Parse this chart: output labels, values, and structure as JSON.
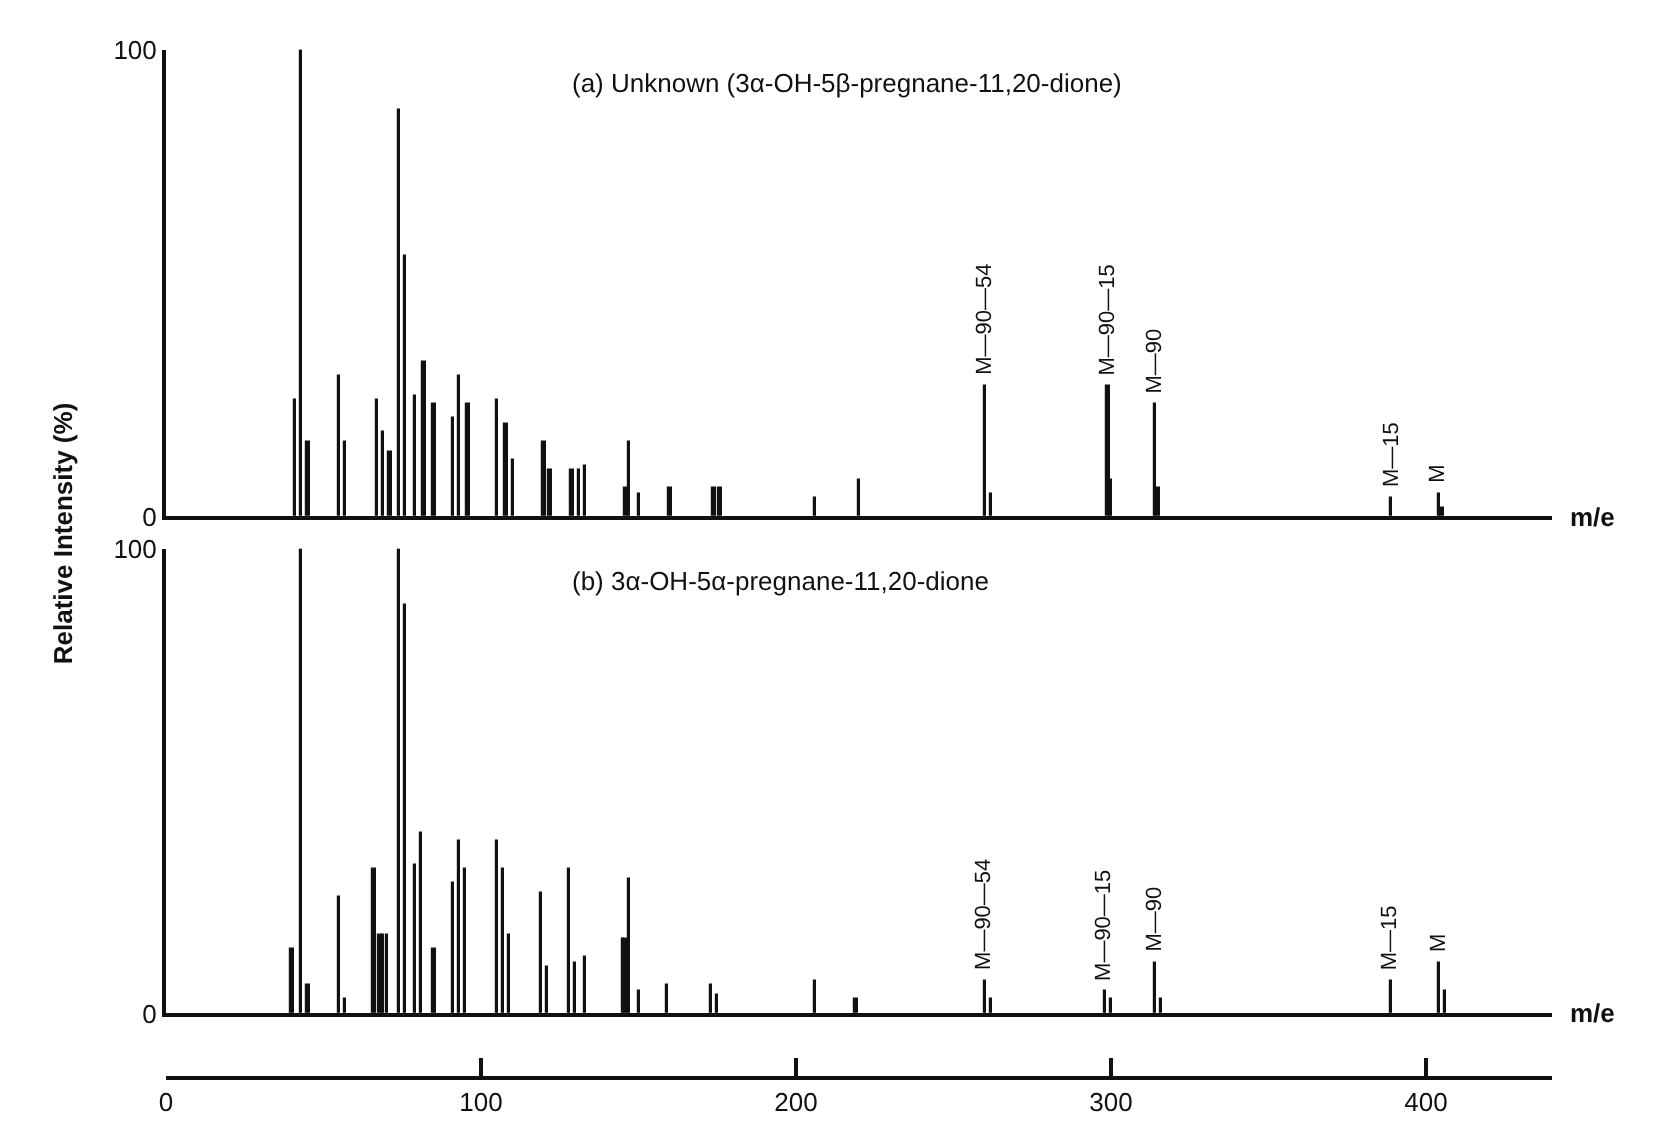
{
  "chart_data": [
    {
      "type": "bar",
      "title": "(a) Unknown (3α-OH-5β-pregnane-11,20-dione)",
      "xlabel": "m/e",
      "ylabel": "Relative Intensity (%)",
      "x": [
        41,
        43,
        45,
        55,
        57,
        67,
        69,
        71,
        74,
        76,
        79,
        82,
        85,
        91,
        93,
        96,
        105,
        108,
        110,
        120,
        122,
        129,
        131,
        133,
        146,
        147,
        150,
        160,
        174,
        176,
        206,
        220,
        260,
        262,
        299,
        300,
        314,
        315,
        389,
        404,
        405
      ],
      "series": [
        {
          "color": "#111111",
          "values": [
            25,
            100,
            16,
            30,
            16,
            25,
            18,
            14,
            87,
            56,
            26,
            33,
            24,
            21,
            30,
            24,
            25,
            20,
            12,
            16,
            10,
            10,
            10,
            11,
            6,
            16,
            5,
            6,
            6,
            6,
            4,
            8,
            28,
            5,
            28,
            8,
            24,
            6,
            4,
            5,
            2
          ]
        }
      ],
      "xlim": [
        0,
        440
      ],
      "ylim": [
        0,
        100
      ],
      "yticks": [
        0,
        100
      ],
      "tick_labels": "y",
      "annotations": [
        {
          "text": "M—90—54",
          "x": 260,
          "y": 28
        },
        {
          "text": "M—90—15",
          "x": 299,
          "y": 28
        },
        {
          "text": "M—90",
          "x": 314,
          "y": 24
        },
        {
          "text": "M—15",
          "x": 389,
          "y": 4
        },
        {
          "text": "M",
          "x": 404,
          "y": 5
        }
      ]
    },
    {
      "type": "bar",
      "title": "(b) 3α-OH-5α-pregnane-11,20-dione",
      "xlabel": "m/e",
      "x": [
        40,
        43,
        45,
        55,
        57,
        66,
        68,
        69,
        70,
        74,
        76,
        79,
        81,
        85,
        91,
        93,
        95,
        105,
        107,
        109,
        119,
        121,
        128,
        130,
        133,
        145,
        146,
        147,
        150,
        159,
        173,
        175,
        206,
        219,
        260,
        262,
        298,
        300,
        314,
        316,
        389,
        404,
        406
      ],
      "series": [
        {
          "color": "#111111",
          "values": [
            14,
            100,
            6,
            25,
            3,
            31,
            17,
            17,
            17,
            100,
            88,
            32,
            39,
            14,
            28,
            37,
            31,
            37,
            31,
            17,
            26,
            10,
            31,
            11,
            12,
            16,
            16,
            29,
            5,
            6,
            6,
            4,
            7,
            3,
            7,
            3,
            5,
            3,
            11,
            3,
            7,
            11,
            5
          ]
        }
      ],
      "xlim": [
        0,
        440
      ],
      "ylim": [
        0,
        100
      ],
      "yticks": [
        0,
        100
      ],
      "xticks": [
        0,
        100,
        200,
        300,
        400
      ],
      "annotations": [
        {
          "text": "M—90—54",
          "x": 260,
          "y": 7
        },
        {
          "text": "M—90—15",
          "x": 298,
          "y": 5
        },
        {
          "text": "M—90",
          "x": 314,
          "y": 11
        },
        {
          "text": "M—15",
          "x": 389,
          "y": 7
        },
        {
          "text": "M",
          "x": 404,
          "y": 11
        }
      ]
    }
  ]
}
